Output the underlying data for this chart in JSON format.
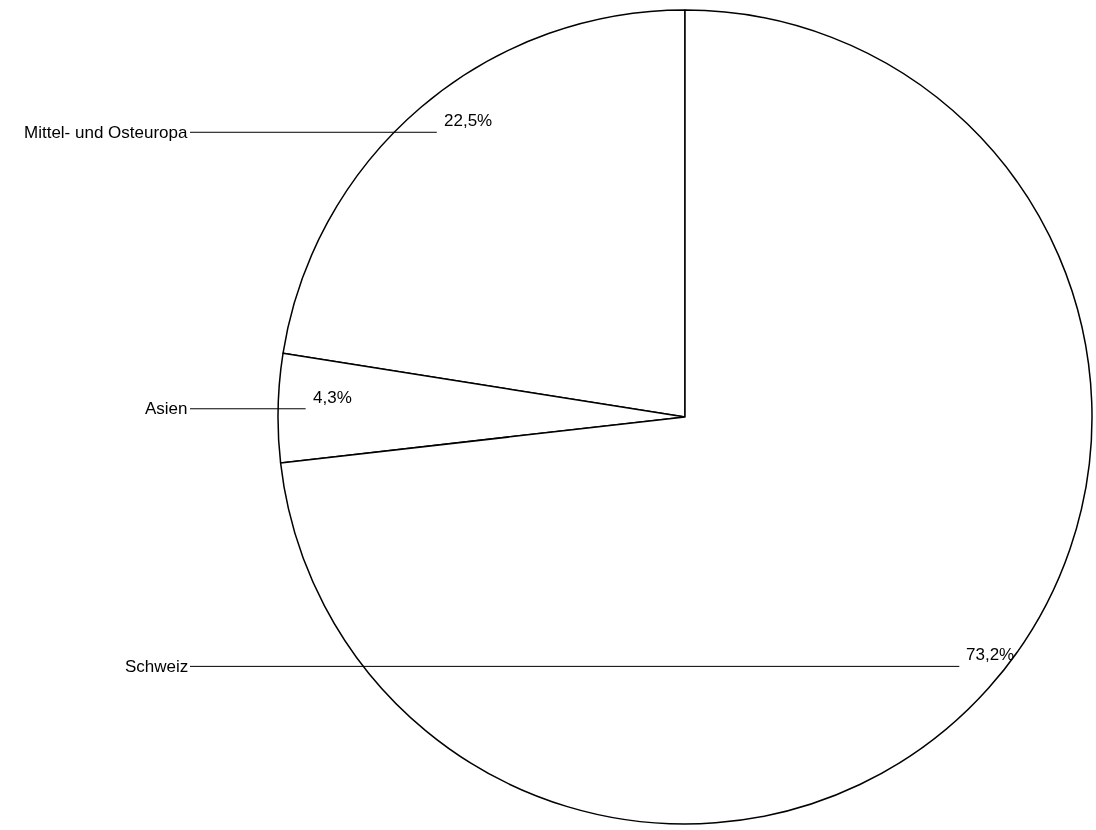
{
  "chart_data": {
    "type": "pie",
    "categories": [
      "Mittel- und Osteuropa",
      "Asien",
      "Schweiz"
    ],
    "values": [
      22.5,
      4.3,
      73.2
    ],
    "value_labels": [
      "22,5%",
      "4,3%",
      "73,2%"
    ],
    "colors": [
      "#ffffff",
      "#ffffff",
      "#ffffff"
    ],
    "legend": false
  }
}
